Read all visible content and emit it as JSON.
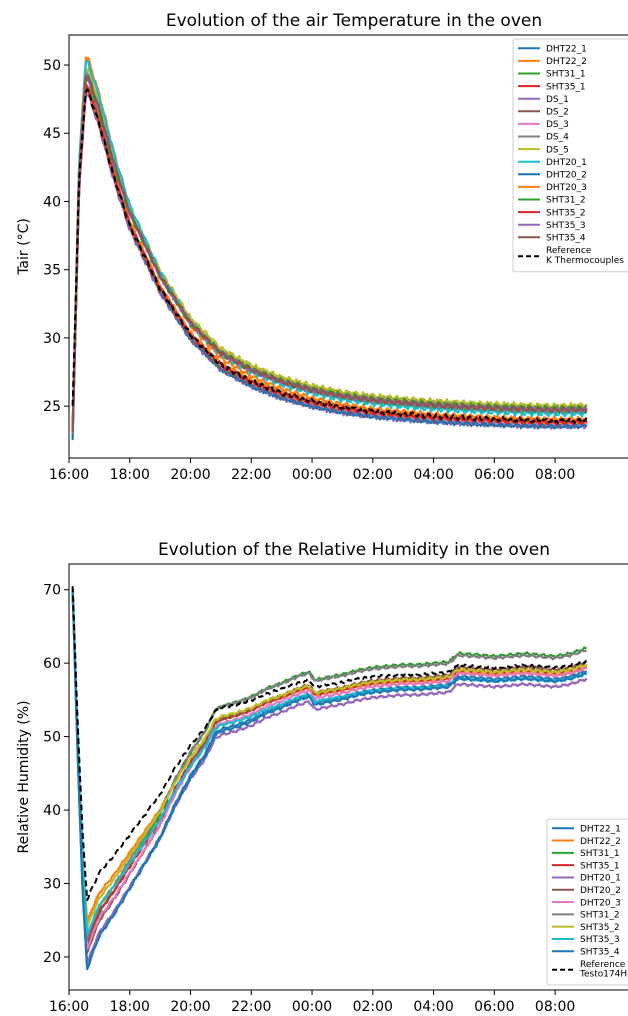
{
  "chart_data": [
    {
      "type": "line",
      "title": "Evolution of the air Temperature in the oven",
      "ylabel": "Tair (°C)",
      "xlabel": "",
      "x_ticks": [
        "16:00",
        "18:00",
        "20:00",
        "22:00",
        "00:00",
        "02:00",
        "04:00",
        "06:00",
        "08:00"
      ],
      "y_ticks": [
        25,
        30,
        35,
        40,
        45,
        50
      ],
      "xlim": [
        16.0,
        25.2
      ],
      "ylim": [
        21.2,
        52.2
      ],
      "legend_position": "upper right",
      "grid": false,
      "curve_shape": {
        "hours": [
          16.12,
          16.33,
          16.55,
          16.65,
          17.0,
          17.5,
          18.0,
          19.0,
          20.0,
          21.0,
          22.0,
          23.0,
          24.0,
          25.0,
          26.0,
          27.0,
          28.0,
          29.0,
          30.0,
          31.0,
          32.0,
          33.0,
          33.05
        ],
        "f": [
          0,
          0.71,
          1,
          0.99,
          0.895,
          0.73,
          0.59,
          0.4,
          0.26,
          0.17,
          0.12,
          0.085,
          0.06,
          0.042,
          0.03,
          0.022,
          0.015,
          0.01,
          0.006,
          0.003,
          0.001,
          0.002,
          0.003
        ]
      },
      "series": [
        {
          "name": "DHT22_1",
          "color": "#1f77b4",
          "start": 23.0,
          "peak": 48.6,
          "end": 23.6
        },
        {
          "name": "DHT22_2",
          "color": "#ff7f0e",
          "start": 23.3,
          "peak": 50.6,
          "end": 24.0
        },
        {
          "name": "SHT31_1",
          "color": "#2ca02c",
          "start": 23.1,
          "peak": 49.4,
          "end": 24.6
        },
        {
          "name": "SHT35_1",
          "color": "#d62728",
          "start": 23.0,
          "peak": 48.6,
          "end": 23.8
        },
        {
          "name": "DS_1",
          "color": "#9467bd",
          "start": 22.9,
          "peak": 48.0,
          "end": 23.5
        },
        {
          "name": "DS_2",
          "color": "#8c564b",
          "start": 22.9,
          "peak": 48.1,
          "end": 23.6
        },
        {
          "name": "DS_3",
          "color": "#e377c2",
          "start": 22.9,
          "peak": 48.2,
          "end": 23.7
        },
        {
          "name": "DS_4",
          "color": "#7f7f7f",
          "start": 23.2,
          "peak": 49.6,
          "end": 24.9
        },
        {
          "name": "DS_5",
          "color": "#bcbd22",
          "start": 23.2,
          "peak": 49.8,
          "end": 25.0
        },
        {
          "name": "DHT20_1",
          "color": "#17becf",
          "start": 23.3,
          "peak": 50.3,
          "end": 24.4
        },
        {
          "name": "DHT20_2",
          "color": "#1f77b4",
          "start": 22.7,
          "peak": 48.4,
          "end": 23.5
        },
        {
          "name": "DHT20_3",
          "color": "#ff7f0e",
          "start": 23.0,
          "peak": 48.6,
          "end": 23.9
        },
        {
          "name": "SHT31_2",
          "color": "#2ca02c",
          "start": 23.2,
          "peak": 49.0,
          "end": 24.8
        },
        {
          "name": "SHT35_2",
          "color": "#d62728",
          "start": 23.0,
          "peak": 48.4,
          "end": 23.8
        },
        {
          "name": "SHT35_3",
          "color": "#9467bd",
          "start": 23.1,
          "peak": 49.2,
          "end": 24.7
        },
        {
          "name": "SHT35_4",
          "color": "#8c564b",
          "start": 23.1,
          "peak": 49.3,
          "end": 24.7
        },
        {
          "name": "Reference\nK Thermocouples",
          "color": "#000000",
          "dashed": true,
          "start": 25.0,
          "peak": 48.2,
          "end": 23.9
        }
      ]
    },
    {
      "type": "line",
      "title": "Evolution of the Relative Humidity in the oven",
      "ylabel": "Relative Humidity (%)",
      "xlabel": "",
      "x_ticks": [
        "16:00",
        "18:00",
        "20:00",
        "22:00",
        "00:00",
        "02:00",
        "04:00",
        "06:00",
        "08:00"
      ],
      "y_ticks": [
        20,
        30,
        40,
        50,
        60,
        70
      ],
      "xlim": [
        16.0,
        25.2
      ],
      "ylim": [
        15.5,
        73.5
      ],
      "legend_position": "lower right",
      "grid": false,
      "curve_shape": {
        "hours": [
          16.12,
          16.25,
          16.45,
          16.6,
          16.75,
          17.0,
          17.5,
          18.0,
          18.5,
          19.0,
          19.5,
          20.0,
          20.5,
          20.8,
          21.0,
          21.5,
          22.0,
          22.5,
          23.0,
          23.5,
          23.9,
          24.1,
          24.5,
          25.0,
          25.5,
          26.0,
          26.5,
          27.0,
          27.5,
          28.0,
          28.5,
          28.8,
          29.5,
          30.0,
          30.5,
          31.0,
          31.5,
          32.0,
          32.5,
          33.05
        ],
        "f": [
          0,
          0.35,
          0.8,
          1,
          0.95,
          0.88,
          0.8,
          0.71,
          0.62,
          0.53,
          0.41,
          0.31,
          0.23,
          0.16,
          0.145,
          0.13,
          0.11,
          0.08,
          0.06,
          0.035,
          0.02,
          0.05,
          0.04,
          0.03,
          0.015,
          0.005,
          0.0,
          -0.005,
          -0.005,
          -0.01,
          -0.015,
          -0.045,
          -0.04,
          -0.035,
          -0.04,
          -0.045,
          -0.04,
          -0.035,
          -0.045,
          -0.065
        ]
      },
      "series": [
        {
          "name": "DHT22_1",
          "color": "#1f77b4",
          "start": 70.0,
          "trough": 18.5,
          "level": 56.5
        },
        {
          "name": "DHT22_2",
          "color": "#ff7f0e",
          "start": 70.0,
          "trough": 24.8,
          "level": 57.3
        },
        {
          "name": "SHT31_1",
          "color": "#2ca02c",
          "start": 70.0,
          "trough": 21.5,
          "level": 59.6
        },
        {
          "name": "SHT35_1",
          "color": "#d62728",
          "start": 70.0,
          "trough": 22.0,
          "level": 57.5
        },
        {
          "name": "DHT20_1",
          "color": "#9467bd",
          "start": 70.0,
          "trough": 19.0,
          "level": 55.5
        },
        {
          "name": "DHT20_2",
          "color": "#8c564b",
          "start": 70.0,
          "trough": 20.5,
          "level": 57.8
        },
        {
          "name": "DHT20_3",
          "color": "#e377c2",
          "start": 70.0,
          "trough": 21.0,
          "level": 57.0
        },
        {
          "name": "SHT31_2",
          "color": "#7f7f7f",
          "start": 70.0,
          "trough": 22.5,
          "level": 59.4
        },
        {
          "name": "SHT35_2",
          "color": "#bcbd22",
          "start": 70.0,
          "trough": 24.0,
          "level": 57.6
        },
        {
          "name": "SHT35_3",
          "color": "#17becf",
          "start": 70.0,
          "trough": 23.0,
          "level": 56.4
        },
        {
          "name": "SHT35_4",
          "color": "#1f77b4",
          "start": 70.0,
          "trough": 18.3,
          "level": 56.2
        },
        {
          "name": "Reference\nTesto174H",
          "color": "#000000",
          "dashed": true,
          "start": 70.5,
          "trough": 27.8,
          "level": 58.3
        }
      ]
    }
  ]
}
